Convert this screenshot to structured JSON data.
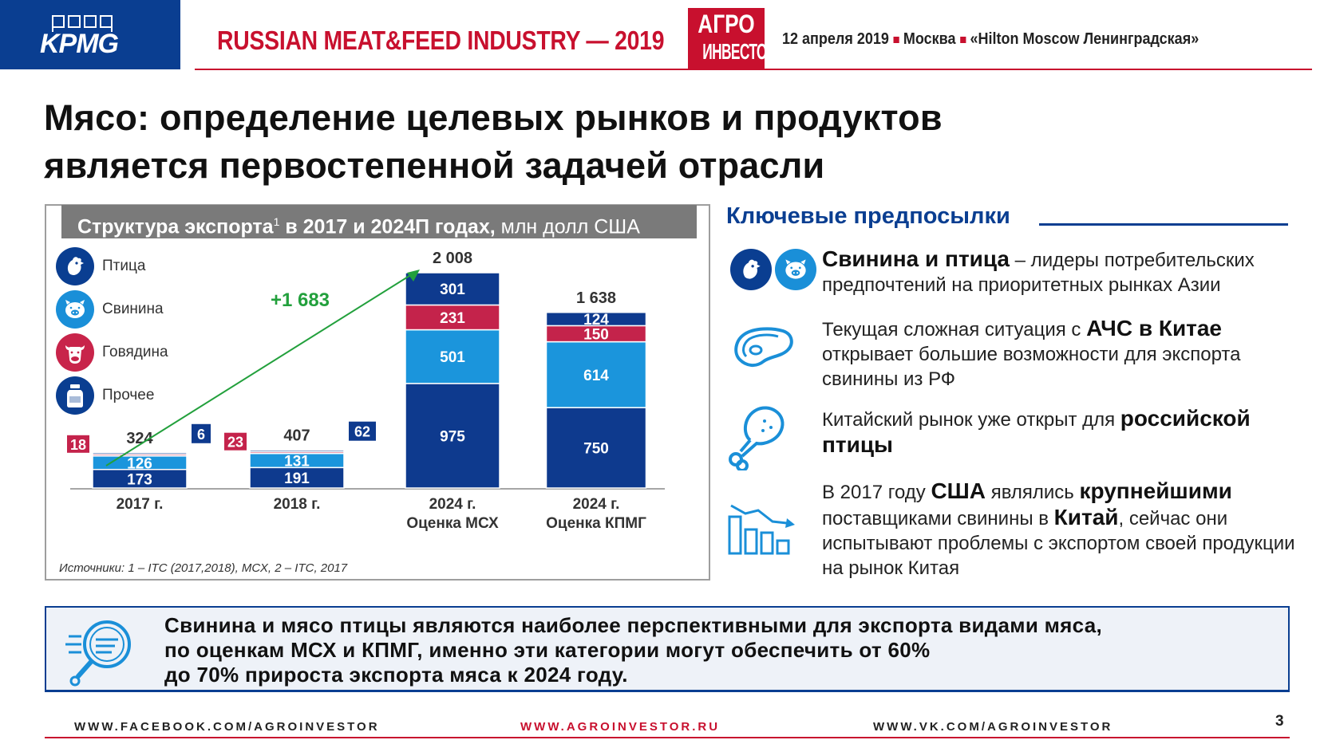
{
  "header": {
    "logo_text": "KPMG",
    "event_title": "RUSSIAN MEAT&FEED INDUSTRY — 2019",
    "agro_logo": [
      "АГРО",
      "ИНВЕСТОР"
    ],
    "date": "12 апреля 2019",
    "city": "Москва",
    "venue": "«Hilton Moscow Ленинградская»"
  },
  "title": {
    "line1": "Мясо: определение целевых рынков и продуктов",
    "line2": "является первостепенной задачей отрасли"
  },
  "chart_panel": {
    "header_bold": "Структура экспорта",
    "header_sup": "1",
    "header_bold2": " в 2017 и 2024П годах,",
    "header_unit": " млн долл США",
    "legend": [
      {
        "label": "Птица",
        "icon": "chicken-icon",
        "color": "#0a3e91"
      },
      {
        "label": "Свинина",
        "icon": "pig-icon",
        "color": "#1a8fd8"
      },
      {
        "label": "Говядина",
        "icon": "cow-icon",
        "color": "#c8244a"
      },
      {
        "label": "Прочее",
        "icon": "jar-icon",
        "color": "#0a3e91"
      }
    ],
    "growth_label": "+1 683",
    "sources": "Источники: 1 – ITC (2017,2018), МСХ, 2 – ITC, 2017"
  },
  "chart_data": {
    "type": "bar",
    "stacked": true,
    "categories": [
      [
        "2017 г."
      ],
      [
        "2018 г."
      ],
      [
        "2024 г.",
        "Оценка МСХ"
      ],
      [
        "2024 г.",
        "Оценка КПМГ"
      ]
    ],
    "totals": [
      "324",
      "407",
      "2 008",
      "1 638"
    ],
    "series": [
      {
        "name": "Птица",
        "color": "#0e3a8e",
        "values": [
          173,
          191,
          975,
          750
        ]
      },
      {
        "name": "Свинина",
        "color": "#1b95dc",
        "values": [
          126,
          131,
          501,
          614
        ]
      },
      {
        "name": "Говядина",
        "color": "#c4234b",
        "values": [
          18,
          23,
          231,
          150
        ]
      },
      {
        "name": "Прочее",
        "color": "#0e3a8e",
        "values": [
          6,
          62,
          301,
          124
        ]
      }
    ],
    "ylim": [
      0,
      2100
    ],
    "grid": false
  },
  "key_points": {
    "title": "Ключевые предпосылки",
    "items": [
      {
        "bold1": "Свинина и птица",
        "text1": " – лидеры потребительских предпочтений на приоритетных рынках Азии"
      },
      {
        "text1": "Текущая сложная ситуация с ",
        "bold1": "АЧС в Китае",
        "text2": " открывает большие возможности для экспорта свинины из РФ"
      },
      {
        "text1": "Китайский рынок уже открыт для ",
        "bold1": "российской птицы"
      },
      {
        "text1": "В 2017 году ",
        "bold1": "США",
        "text2": " являлись ",
        "bold2": "крупнейшими",
        "text3": " поставщиками свинины в ",
        "bold3": "Китай",
        "text4": ", сейчас они испытывают проблемы с экспортом своей продукции на рынок Китая"
      }
    ]
  },
  "conclusion": {
    "line1": "Свинина и мясо птицы являются наиболее перспективными для экспорта видами мяса,",
    "line2": "по оценкам МСХ и КПМГ, именно эти категории могут обеспечить от 60%",
    "line3": "до 70% прироста экспорта мяса к 2024 году."
  },
  "footer": {
    "facebook": "WWW.FACEBOOK.COM/AGROINVESTOR",
    "site": "WWW.AGROINVESTOR.RU",
    "vk": "WWW.VK.COM/AGROINVESTOR",
    "page": "3"
  }
}
